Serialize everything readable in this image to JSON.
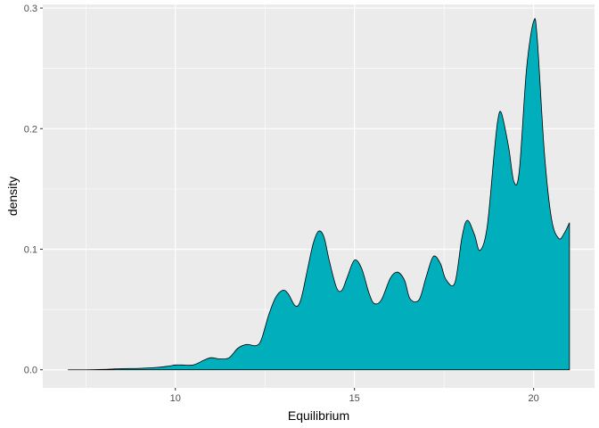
{
  "chart_data": {
    "type": "area",
    "title": "",
    "xlabel": "Equilibrium",
    "ylabel": "density",
    "xlim": [
      6.3,
      21.7
    ],
    "ylim": [
      -0.015,
      0.303
    ],
    "x_ticks": [
      10,
      15,
      20
    ],
    "x_tick_labels": [
      "10",
      "15",
      "20"
    ],
    "y_ticks": [
      0.0,
      0.1,
      0.2,
      0.3
    ],
    "y_tick_labels": [
      "0.0",
      "0.1",
      "0.2",
      "0.3"
    ],
    "grid": true,
    "legend": "none",
    "fill_color": "#00AFBB",
    "outline_color": "#000000",
    "panel_background": "#EBEBEB",
    "grid_color": "#FFFFFF",
    "series": [
      {
        "x": [
          7.0,
          7.5,
          8.0,
          8.5,
          9.0,
          9.5,
          9.8,
          10.0,
          10.2,
          10.5,
          10.8,
          11.0,
          11.25,
          11.5,
          11.75,
          12.0,
          12.25,
          12.4,
          12.6,
          12.8,
          13.0,
          13.15,
          13.35,
          13.5,
          13.7,
          13.85,
          14.0,
          14.15,
          14.3,
          14.5,
          14.65,
          14.8,
          15.0,
          15.2,
          15.4,
          15.55,
          15.75,
          16.0,
          16.2,
          16.4,
          16.55,
          16.8,
          17.0,
          17.2,
          17.4,
          17.55,
          17.8,
          18.0,
          18.15,
          18.35,
          18.5,
          18.7,
          18.9,
          19.0,
          19.1,
          19.3,
          19.45,
          19.6,
          19.8,
          20.0,
          20.1,
          20.3,
          20.5,
          20.7,
          20.85,
          21.0
        ],
        "y": [
          0.0,
          0.0,
          0.0003,
          0.001,
          0.0012,
          0.002,
          0.003,
          0.004,
          0.004,
          0.004,
          0.008,
          0.01,
          0.009,
          0.01,
          0.018,
          0.021,
          0.02,
          0.025,
          0.045,
          0.06,
          0.066,
          0.063,
          0.053,
          0.058,
          0.085,
          0.105,
          0.115,
          0.11,
          0.09,
          0.068,
          0.066,
          0.077,
          0.091,
          0.084,
          0.064,
          0.055,
          0.058,
          0.076,
          0.081,
          0.074,
          0.059,
          0.058,
          0.077,
          0.094,
          0.088,
          0.075,
          0.072,
          0.11,
          0.124,
          0.112,
          0.099,
          0.118,
          0.18,
          0.207,
          0.213,
          0.185,
          0.156,
          0.165,
          0.249,
          0.289,
          0.275,
          0.18,
          0.125,
          0.109,
          0.113,
          0.122
        ]
      }
    ]
  }
}
